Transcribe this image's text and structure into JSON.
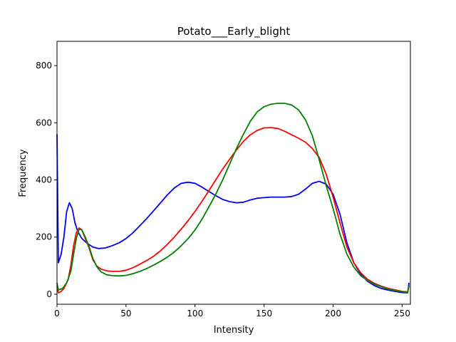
{
  "chart_data": {
    "type": "line",
    "title": "Potato___Early_blight",
    "xlabel": "Intensity",
    "ylabel": "Frequency",
    "xlim": [
      0,
      256
    ],
    "ylim": [
      -35,
      885
    ],
    "xticks": [
      0,
      50,
      100,
      150,
      200,
      250
    ],
    "yticks": [
      0,
      200,
      400,
      600,
      800
    ],
    "grid": false,
    "legend": "none",
    "series": [
      {
        "color": "#0000ff",
        "points": [
          [
            0,
            560
          ],
          [
            1,
            110
          ],
          [
            3,
            140
          ],
          [
            5,
            200
          ],
          [
            7,
            290
          ],
          [
            9,
            320
          ],
          [
            11,
            300
          ],
          [
            13,
            250
          ],
          [
            15,
            220
          ],
          [
            18,
            195
          ],
          [
            22,
            178
          ],
          [
            26,
            165
          ],
          [
            30,
            160
          ],
          [
            35,
            162
          ],
          [
            40,
            170
          ],
          [
            45,
            180
          ],
          [
            50,
            195
          ],
          [
            55,
            215
          ],
          [
            60,
            240
          ],
          [
            65,
            265
          ],
          [
            70,
            292
          ],
          [
            75,
            320
          ],
          [
            80,
            348
          ],
          [
            85,
            372
          ],
          [
            90,
            388
          ],
          [
            95,
            392
          ],
          [
            100,
            388
          ],
          [
            105,
            375
          ],
          [
            110,
            360
          ],
          [
            115,
            345
          ],
          [
            120,
            332
          ],
          [
            125,
            324
          ],
          [
            130,
            320
          ],
          [
            135,
            322
          ],
          [
            140,
            330
          ],
          [
            145,
            336
          ],
          [
            150,
            338
          ],
          [
            155,
            340
          ],
          [
            160,
            340
          ],
          [
            165,
            340
          ],
          [
            170,
            342
          ],
          [
            175,
            350
          ],
          [
            180,
            368
          ],
          [
            185,
            388
          ],
          [
            190,
            395
          ],
          [
            195,
            385
          ],
          [
            200,
            350
          ],
          [
            205,
            280
          ],
          [
            210,
            180
          ],
          [
            215,
            110
          ],
          [
            220,
            70
          ],
          [
            225,
            45
          ],
          [
            230,
            30
          ],
          [
            235,
            20
          ],
          [
            240,
            14
          ],
          [
            245,
            10
          ],
          [
            250,
            6
          ],
          [
            254,
            5
          ],
          [
            255,
            40
          ]
        ]
      },
      {
        "color": "#ff0000",
        "points": [
          [
            0,
            30
          ],
          [
            1,
            5
          ],
          [
            3,
            10
          ],
          [
            5,
            20
          ],
          [
            8,
            50
          ],
          [
            10,
            100
          ],
          [
            12,
            170
          ],
          [
            14,
            215
          ],
          [
            16,
            232
          ],
          [
            18,
            225
          ],
          [
            20,
            200
          ],
          [
            23,
            165
          ],
          [
            26,
            120
          ],
          [
            29,
            98
          ],
          [
            32,
            88
          ],
          [
            36,
            82
          ],
          [
            40,
            80
          ],
          [
            45,
            80
          ],
          [
            50,
            84
          ],
          [
            55,
            93
          ],
          [
            60,
            105
          ],
          [
            65,
            118
          ],
          [
            70,
            133
          ],
          [
            75,
            152
          ],
          [
            80,
            175
          ],
          [
            85,
            200
          ],
          [
            90,
            228
          ],
          [
            95,
            258
          ],
          [
            100,
            290
          ],
          [
            105,
            325
          ],
          [
            110,
            362
          ],
          [
            115,
            400
          ],
          [
            120,
            438
          ],
          [
            125,
            472
          ],
          [
            130,
            505
          ],
          [
            135,
            535
          ],
          [
            140,
            558
          ],
          [
            145,
            573
          ],
          [
            150,
            582
          ],
          [
            155,
            583
          ],
          [
            160,
            580
          ],
          [
            165,
            570
          ],
          [
            170,
            558
          ],
          [
            175,
            546
          ],
          [
            180,
            532
          ],
          [
            185,
            510
          ],
          [
            190,
            478
          ],
          [
            195,
            420
          ],
          [
            200,
            340
          ],
          [
            205,
            250
          ],
          [
            210,
            165
          ],
          [
            215,
            110
          ],
          [
            220,
            75
          ],
          [
            225,
            52
          ],
          [
            230,
            38
          ],
          [
            235,
            28
          ],
          [
            240,
            20
          ],
          [
            245,
            15
          ],
          [
            250,
            10
          ],
          [
            254,
            8
          ],
          [
            255,
            30
          ]
        ]
      },
      {
        "color": "#008000",
        "points": [
          [
            0,
            40
          ],
          [
            1,
            15
          ],
          [
            4,
            20
          ],
          [
            7,
            40
          ],
          [
            10,
            80
          ],
          [
            12,
            140
          ],
          [
            14,
            195
          ],
          [
            16,
            228
          ],
          [
            18,
            225
          ],
          [
            20,
            205
          ],
          [
            23,
            170
          ],
          [
            26,
            125
          ],
          [
            29,
            95
          ],
          [
            32,
            78
          ],
          [
            36,
            68
          ],
          [
            40,
            65
          ],
          [
            45,
            64
          ],
          [
            50,
            66
          ],
          [
            55,
            72
          ],
          [
            60,
            80
          ],
          [
            65,
            90
          ],
          [
            70,
            102
          ],
          [
            75,
            115
          ],
          [
            80,
            130
          ],
          [
            85,
            148
          ],
          [
            90,
            170
          ],
          [
            95,
            195
          ],
          [
            100,
            225
          ],
          [
            105,
            262
          ],
          [
            110,
            305
          ],
          [
            115,
            350
          ],
          [
            120,
            400
          ],
          [
            125,
            455
          ],
          [
            130,
            510
          ],
          [
            135,
            560
          ],
          [
            140,
            605
          ],
          [
            145,
            638
          ],
          [
            150,
            656
          ],
          [
            155,
            665
          ],
          [
            160,
            668
          ],
          [
            165,
            668
          ],
          [
            170,
            662
          ],
          [
            175,
            645
          ],
          [
            180,
            610
          ],
          [
            185,
            555
          ],
          [
            190,
            470
          ],
          [
            195,
            380
          ],
          [
            200,
            300
          ],
          [
            205,
            210
          ],
          [
            210,
            140
          ],
          [
            215,
            95
          ],
          [
            220,
            65
          ],
          [
            225,
            48
          ],
          [
            230,
            35
          ],
          [
            235,
            26
          ],
          [
            240,
            18
          ],
          [
            245,
            13
          ],
          [
            250,
            9
          ],
          [
            254,
            7
          ],
          [
            255,
            30
          ]
        ]
      }
    ]
  }
}
